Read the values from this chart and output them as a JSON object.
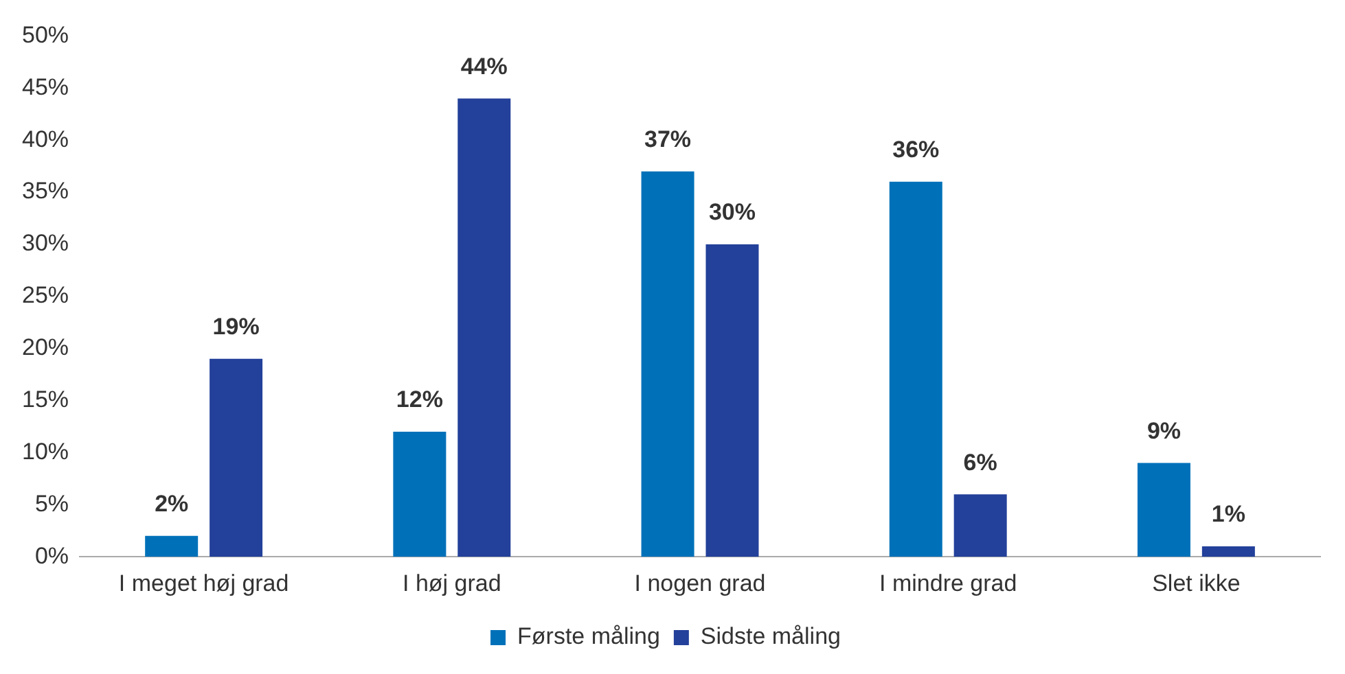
{
  "chart_data": {
    "type": "bar",
    "categories": [
      "I meget høj grad",
      "I høj grad",
      "I nogen grad",
      "I mindre grad",
      "Slet ikke"
    ],
    "series": [
      {
        "name": "Første måling",
        "color": "#0071b9",
        "values": [
          2,
          12,
          37,
          36,
          9
        ],
        "value_labels": [
          "2%",
          "12%",
          "37%",
          "36%",
          "9%"
        ]
      },
      {
        "name": "Sidste måling",
        "color": "#23409a",
        "values": [
          19,
          44,
          30,
          6,
          1
        ],
        "value_labels": [
          "19%",
          "44%",
          "30%",
          "6%",
          "1%"
        ]
      }
    ],
    "ylim": [
      0,
      50
    ],
    "yticks": [
      {
        "value": 0,
        "label": "0%"
      },
      {
        "value": 5,
        "label": "5%"
      },
      {
        "value": 10,
        "label": "10%"
      },
      {
        "value": 15,
        "label": "15%"
      },
      {
        "value": 20,
        "label": "20%"
      },
      {
        "value": 25,
        "label": "25%"
      },
      {
        "value": 30,
        "label": "30%"
      },
      {
        "value": 35,
        "label": "35%"
      },
      {
        "value": 40,
        "label": "40%"
      },
      {
        "value": 45,
        "label": "45%"
      },
      {
        "value": 50,
        "label": "50%"
      }
    ],
    "grid": false,
    "legend": "bottom"
  }
}
